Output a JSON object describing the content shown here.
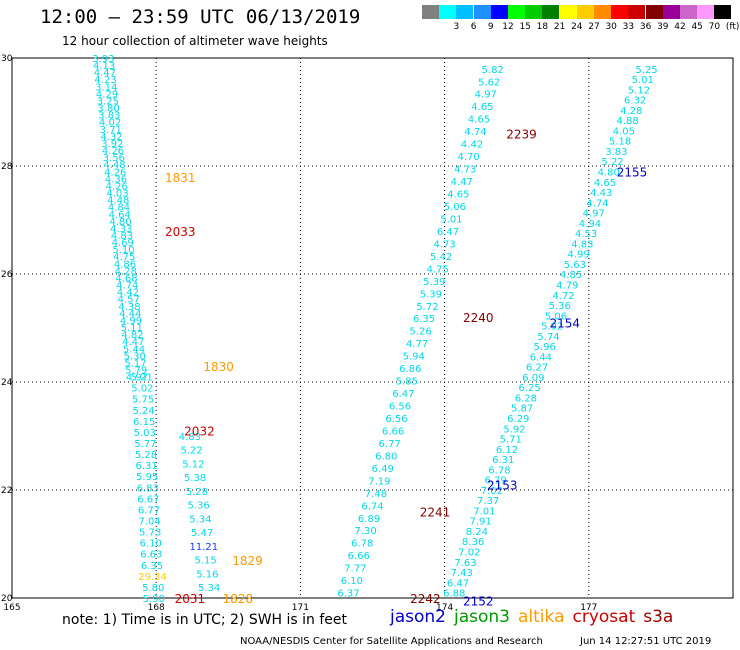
{
  "title": "12:00 – 23:59 UTC 06/13/2019",
  "subtitle": "12 hour collection of altimeter wave heights",
  "color_legend": {
    "unit": "(ft)",
    "bins": [
      {
        "label": "",
        "color": "#808080"
      },
      {
        "label": "3",
        "color": "#00ffff"
      },
      {
        "label": "6",
        "color": "#00bfff"
      },
      {
        "label": "9",
        "color": "#1e90ff"
      },
      {
        "label": "12",
        "color": "#0000ff"
      },
      {
        "label": "15",
        "color": "#00ff00"
      },
      {
        "label": "18",
        "color": "#00cc00"
      },
      {
        "label": "21",
        "color": "#008000"
      },
      {
        "label": "24",
        "color": "#ffff00"
      },
      {
        "label": "27",
        "color": "#ffcc00"
      },
      {
        "label": "30",
        "color": "#ff8c00"
      },
      {
        "label": "33",
        "color": "#ff0000"
      },
      {
        "label": "36",
        "color": "#cc0000"
      },
      {
        "label": "39",
        "color": "#800000"
      },
      {
        "label": "42",
        "color": "#990099"
      },
      {
        "label": "45",
        "color": "#cc66cc"
      },
      {
        "label": "70",
        "color": "#ff99ff"
      },
      {
        "label": "",
        "color": "#000000"
      }
    ]
  },
  "footer_note": "note:  1) Time is in UTC;  2) SWH is in feet",
  "satellites": [
    {
      "name": "jason2",
      "color": "#0000cc"
    },
    {
      "name": "jason3",
      "color": "#009900"
    },
    {
      "name": "altika",
      "color": "#ff9900"
    },
    {
      "name": "cryosat",
      "color": "#cc0000"
    },
    {
      "name": "s3a",
      "color": "#990000"
    }
  ],
  "credit": "NOAA/NESDIS Center for Satellite Applications and Research",
  "timestamp": "Jun 14 12:27:51 UTC 2019",
  "chart_data": {
    "type": "scatter",
    "xlim": [
      165,
      180
    ],
    "ylim": [
      20,
      30
    ],
    "xticks": [
      165,
      168,
      171,
      174,
      177
    ],
    "yticks": [
      20,
      22,
      24,
      26,
      28,
      30
    ],
    "grid": true,
    "value_color": "#00d8e8",
    "tracks": [
      {
        "x0": 166.9,
        "y0": 30.0,
        "x1": 167.6,
        "y1": 24.1,
        "values": [
          "3.93",
          "4.13",
          "4.47",
          "4.23",
          "3.14",
          "4.29",
          "3.25",
          "3.80",
          "3.83",
          "4.02",
          "3.71",
          "4.32",
          "3.92",
          "4.26",
          "3.56",
          "4.48",
          "4.26",
          "4.36",
          "4.26",
          "4.03",
          "4.48",
          "4.84",
          "4.64",
          "4.80",
          "4.33",
          "4.83",
          "4.69",
          "5.10",
          "4.75",
          "4.86",
          "4.28",
          "4.68",
          "4.74",
          "4.42",
          "4.57",
          "4.38",
          "4.44",
          "4.99",
          "5.11",
          "4.82",
          "4.47",
          "5.44",
          "5.30",
          "5.17",
          "5.79",
          "4.97"
        ]
      },
      {
        "x0": 167.7,
        "y0": 24.1,
        "x1": 167.95,
        "y1": 20.0,
        "values": [
          "5.21",
          "5.02",
          "5.75",
          "5.24",
          "6.15",
          "5.03",
          "5.77",
          "5.28",
          "6.31",
          "5.95",
          "6.83",
          "6.67",
          "6.77",
          "7.04",
          "5.73",
          "6.10",
          "6.63",
          "6.35",
          "29.34",
          "5.80",
          "5.90"
        ]
      },
      {
        "x0": 168.7,
        "y0": 23.0,
        "x1": 169.1,
        "y1": 20.2,
        "values": [
          "4.83",
          "5.22",
          "5.12",
          "5.38",
          "5.28",
          "5.36",
          "5.34",
          "5.47",
          "11.21",
          "5.15",
          "5.16",
          "5.34"
        ]
      },
      {
        "x0": 175.0,
        "y0": 29.8,
        "x1": 172.0,
        "y1": 20.1,
        "values": [
          "5.82",
          "5.62",
          "4.97",
          "4.65",
          "4.65",
          "4.74",
          "4.42",
          "4.70",
          "4.73",
          "4.47",
          "4.65",
          "5.06",
          "5.01",
          "6.47",
          "4.73",
          "5.42",
          "4.75",
          "5.39",
          "5.39",
          "5.72",
          "6.35",
          "5.26",
          "4.77",
          "5.94",
          "6.86",
          "5.85",
          "6.47",
          "6.56",
          "6.56",
          "6.66",
          "6.77",
          "6.80",
          "6.49",
          "7.19",
          "7.48",
          "6.74",
          "6.89",
          "7.30",
          "6.78",
          "6.66",
          "7.77",
          "6.10",
          "6.37"
        ]
      },
      {
        "x0": 178.2,
        "y0": 29.8,
        "x1": 174.2,
        "y1": 20.1,
        "values": [
          "5.25",
          "5.01",
          "5.12",
          "6.32",
          "4.28",
          "4.88",
          "4.05",
          "5.18",
          "3.83",
          "5.22",
          "4.80",
          "4.65",
          "4.43",
          "4.74",
          "4.97",
          "4.94",
          "4.53",
          "4.83",
          "4.99",
          "5.63",
          "4.85",
          "4.79",
          "4.72",
          "5.36",
          "5.06",
          "5.92",
          "5.74",
          "5.96",
          "6.44",
          "6.27",
          "6.09",
          "6.25",
          "6.28",
          "5.87",
          "6.29",
          "5.92",
          "5.71",
          "6.12",
          "6.31",
          "6.78",
          "6.79",
          "7.02",
          "7.37",
          "7.01",
          "7.91",
          "8.24",
          "8.36",
          "7.02",
          "7.63",
          "7.43",
          "6.47",
          "6.88"
        ]
      }
    ],
    "time_labels": [
      {
        "text": "1831",
        "x": 168.5,
        "y": 27.8,
        "color": "#ff9900"
      },
      {
        "text": "2033",
        "x": 168.5,
        "y": 26.8,
        "color": "#cc0000"
      },
      {
        "text": "1830",
        "x": 169.3,
        "y": 24.3,
        "color": "#ff9900"
      },
      {
        "text": "2032",
        "x": 168.9,
        "y": 23.1,
        "color": "#cc0000"
      },
      {
        "text": "1829",
        "x": 169.9,
        "y": 20.7,
        "color": "#ff9900"
      },
      {
        "text": "2031",
        "x": 168.7,
        "y": 20.0,
        "color": "#cc0000"
      },
      {
        "text": "1828",
        "x": 169.7,
        "y": 20.0,
        "color": "#ff9900"
      },
      {
        "text": "2239",
        "x": 175.6,
        "y": 28.6,
        "color": "#800000"
      },
      {
        "text": "2155",
        "x": 177.9,
        "y": 27.9,
        "color": "#0000cc"
      },
      {
        "text": "2240",
        "x": 174.7,
        "y": 25.2,
        "color": "#800000"
      },
      {
        "text": "2154",
        "x": 176.5,
        "y": 25.1,
        "color": "#0000cc"
      },
      {
        "text": "2153",
        "x": 175.2,
        "y": 22.1,
        "color": "#0000cc"
      },
      {
        "text": "2241",
        "x": 173.8,
        "y": 21.6,
        "color": "#800000"
      },
      {
        "text": "2242",
        "x": 173.6,
        "y": 20.0,
        "color": "#800000"
      },
      {
        "text": "2152",
        "x": 174.7,
        "y": 19.95,
        "color": "#0000cc"
      }
    ]
  }
}
